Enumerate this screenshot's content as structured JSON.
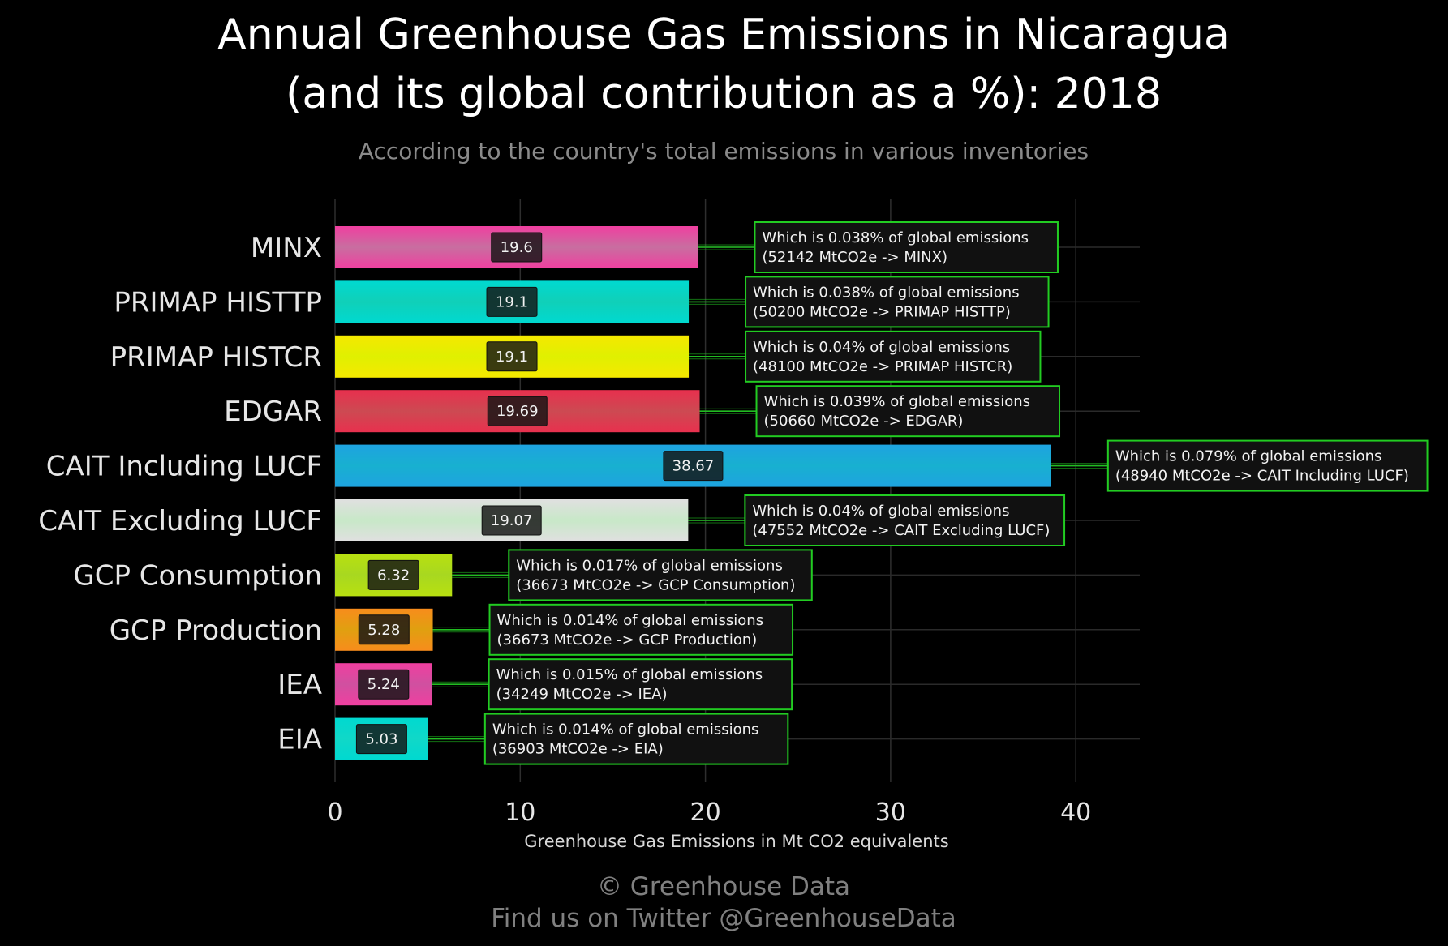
{
  "chart_data": {
    "type": "bar",
    "orientation": "horizontal",
    "title_line1": "Annual Greenhouse Gas Emissions in Nicaragua",
    "title_line2": "(and its global contribution as a %): 2018",
    "subtitle": "According to the country's total emissions in various inventories",
    "xlabel": "Greenhouse Gas Emissions in Mt CO2 equivalents",
    "ylabel": "",
    "xlim": [
      0,
      43.5
    ],
    "xticks": [
      "0",
      "10",
      "20",
      "30",
      "40"
    ],
    "grid": true,
    "categories": [
      "MINX",
      "PRIMAP HISTTP",
      "PRIMAP HISTCR",
      "EDGAR",
      "CAIT Including LUCF",
      "CAIT Excluding LUCF",
      "GCP Consumption",
      "GCP Production",
      "IEA",
      "EIA"
    ],
    "values": [
      19.6,
      19.1,
      19.1,
      19.69,
      38.67,
      19.07,
      6.32,
      5.28,
      5.24,
      5.03
    ],
    "value_labels": [
      "19.6",
      "19.1",
      "19.1",
      "19.69",
      "38.67",
      "19.07",
      "6.32",
      "5.28",
      "5.24",
      "5.03"
    ],
    "colors": [
      "#f03fa0",
      "#00d9d0",
      "#f5e800",
      "#e8304e",
      "#1ea3e0",
      "#e0e0e0",
      "#b8e010",
      "#f88c1c",
      "#f03fa0",
      "#00d9d0"
    ],
    "gradient_colors": [
      "#c86ea0",
      "#10d0b8",
      "#e0f000",
      "#cc4a52",
      "#18b0d0",
      "#c8e8c8",
      "#a8d820",
      "#e0a010",
      "#d050a0",
      "#10d8c8"
    ],
    "annotations": [
      {
        "line1": "Which is 0.038% of global emissions",
        "line2": "(52142 MtCO2e -> MINX)"
      },
      {
        "line1": "Which is 0.038% of global emissions",
        "line2": "(50200 MtCO2e -> PRIMAP HISTTP)"
      },
      {
        "line1": "Which is 0.04% of global emissions",
        "line2": "(48100 MtCO2e -> PRIMAP HISTCR)"
      },
      {
        "line1": "Which is 0.039% of global emissions",
        "line2": "(50660 MtCO2e -> EDGAR)"
      },
      {
        "line1": "Which is 0.079% of global emissions",
        "line2": "(48940 MtCO2e -> CAIT Including LUCF)"
      },
      {
        "line1": "Which is 0.04% of global emissions",
        "line2": "(47552 MtCO2e -> CAIT Excluding LUCF)"
      },
      {
        "line1": "Which is 0.017% of global emissions",
        "line2": "(36673 MtCO2e -> GCP Consumption)"
      },
      {
        "line1": "Which is 0.014% of global emissions",
        "line2": "(36673 MtCO2e -> GCP Production)"
      },
      {
        "line1": "Which is 0.015% of global emissions",
        "line2": "(34249 MtCO2e -> IEA)"
      },
      {
        "line1": "Which is 0.014% of global emissions",
        "line2": "(36903 MtCO2e -> EIA)"
      }
    ],
    "annotation_border_color": "#22cc22",
    "connector_color": "#22cc22"
  },
  "credits": {
    "line1": "© Greenhouse Data",
    "line2": "Find us on Twitter @GreenhouseData"
  }
}
